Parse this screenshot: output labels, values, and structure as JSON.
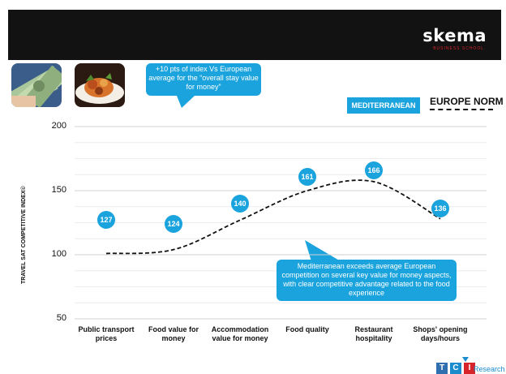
{
  "header": {
    "logo": "skema",
    "logo_sub": "BUSINESS SCHOOL"
  },
  "callouts": {
    "top": "+10 pts of index Vs European average for the “overall stay value for money”",
    "bottom": "Mediterranean exceeds average European competition on several key value for money aspects, with clear competitive advantage related to the food experience"
  },
  "legend": {
    "series_label": "MEDITERRANEAN",
    "norm_label": "EUROPE NORM"
  },
  "footer": {
    "tci_letters": [
      "T",
      "C",
      "I"
    ],
    "research": "Research"
  },
  "colors": {
    "accent": "#1aa3dd",
    "norm_line": "#111111",
    "header": "#121212"
  },
  "chart_data": {
    "type": "line",
    "ylabel": "TRAVEL SAT COMPETITIVE INDEX©",
    "ylim": [
      50,
      200
    ],
    "yticks": [
      50,
      100,
      150,
      200
    ],
    "categories": [
      "Public transport prices",
      "Food value for money",
      "Accommodation value for money",
      "Food quality",
      "Restaurant hospitality",
      "Shops' opening days/hours"
    ],
    "series": [
      {
        "name": "MEDITERRANEAN",
        "values": [
          127,
          124,
          140,
          161,
          166,
          136
        ],
        "style": "labeled circles"
      },
      {
        "name": "EUROPE NORM",
        "values": [
          101,
          104,
          127,
          150,
          157,
          128
        ],
        "style": "dashed line"
      }
    ],
    "grid": true,
    "legend": "top-right"
  }
}
